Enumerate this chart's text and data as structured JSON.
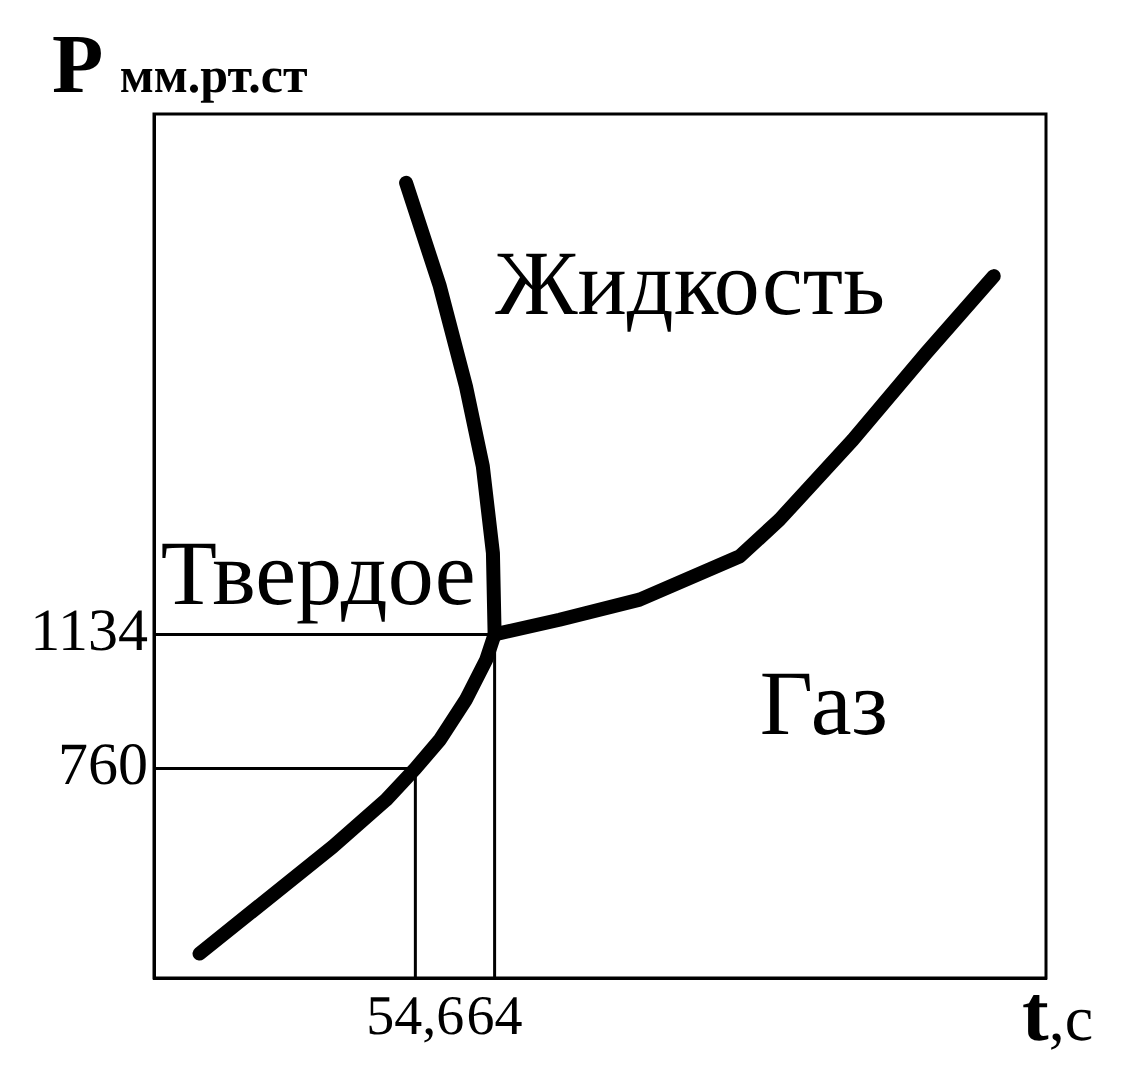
{
  "chart_data": {
    "type": "line",
    "xlabel": "t,c",
    "ylabel": "P мм.рт.ст",
    "xlim": [
      23.6,
      129.4
    ],
    "ylim": [
      176,
      2585
    ],
    "xticks": [
      {
        "value": 54.6,
        "label": "54,6"
      },
      64
    ],
    "yticks": [
      760,
      1134
    ],
    "marker": "none",
    "annotations": [
      "Жидкость",
      "Твердое",
      "Газ"
    ],
    "series": [
      {
        "color": "#000000",
        "x": [
          29.0,
          36.9,
          44.8,
          51.1,
          54.6,
          57.5,
          60.6,
          63.0,
          64,
          63.8,
          62.6,
          60.6,
          57.5,
          53.5
        ],
        "values": [
          244,
          393,
          542,
          672,
          760,
          840,
          952,
          1063,
          1134,
          1361,
          1603,
          1826,
          2105,
          2393
        ]
      },
      {
        "color": "#000000",
        "x": [
          64,
          71.7,
          81.2,
          93.1,
          97.8,
          106.5,
          115.2,
          123.2
        ],
        "values": [
          1134,
          1175,
          1231,
          1352,
          1454,
          1677,
          1919,
          2133
        ]
      },
      {
        "color": "#000000",
        "x": [
          23.6,
          54.6,
          54.6
        ],
        "values": [
          760,
          760,
          176
        ]
      },
      {
        "color": "#000000",
        "x": [
          23.6,
          64,
          64
        ],
        "values": [
          1134,
          1134,
          176
        ]
      }
    ]
  }
}
